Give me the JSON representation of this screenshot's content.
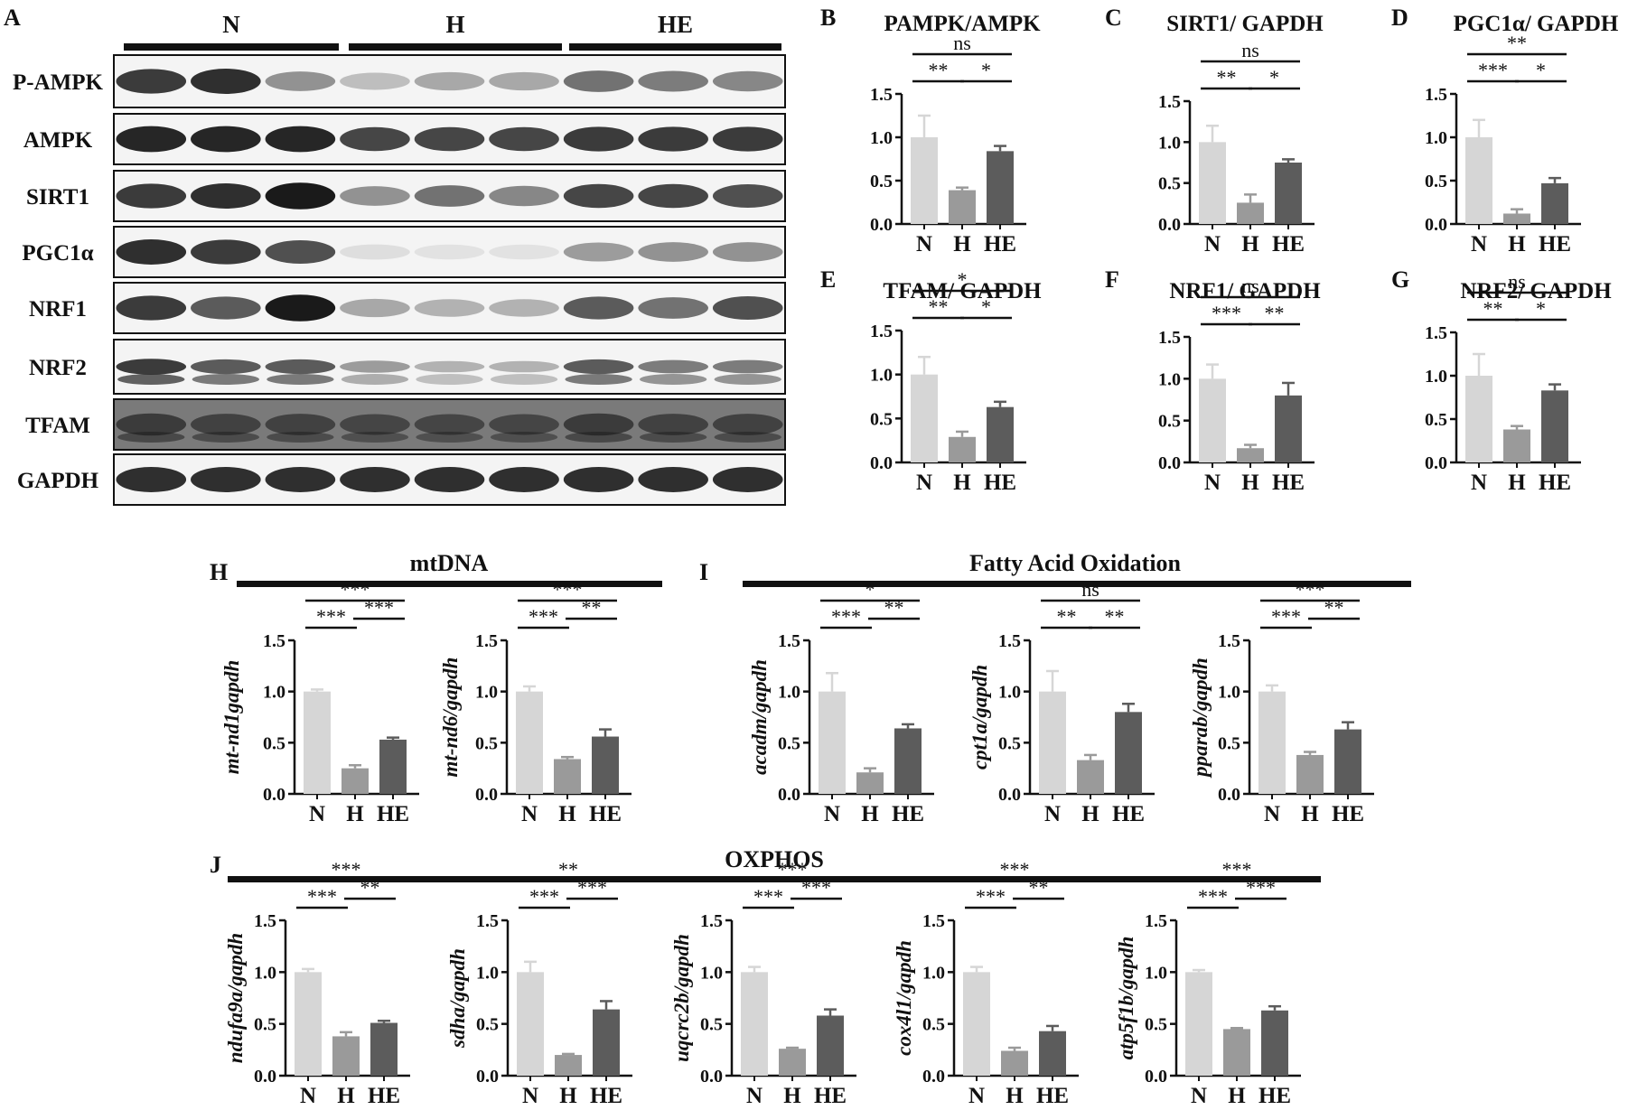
{
  "colors": {
    "N": "#d6d6d6",
    "H": "#9a9a9a",
    "HE": "#5c5c5c",
    "axis": "#111111",
    "blot": "#1a1a1a"
  },
  "blot": {
    "letter": "A",
    "groups": [
      "N",
      "H",
      "HE"
    ],
    "rows": [
      {
        "label": "P-AMPK",
        "intensities": [
          0.85,
          0.9,
          0.45,
          0.25,
          0.35,
          0.35,
          0.6,
          0.55,
          0.5
        ]
      },
      {
        "label": "AMPK",
        "intensities": [
          0.95,
          0.95,
          0.95,
          0.8,
          0.8,
          0.8,
          0.85,
          0.85,
          0.85
        ]
      },
      {
        "label": "SIRT1",
        "intensities": [
          0.85,
          0.9,
          1.0,
          0.45,
          0.6,
          0.5,
          0.8,
          0.8,
          0.75
        ]
      },
      {
        "label": "PGC1α",
        "intensities": [
          0.9,
          0.85,
          0.75,
          0.1,
          0.08,
          0.08,
          0.4,
          0.45,
          0.45
        ]
      },
      {
        "label": "NRF1",
        "intensities": [
          0.85,
          0.7,
          1.0,
          0.35,
          0.3,
          0.3,
          0.7,
          0.6,
          0.75
        ]
      },
      {
        "label": "NRF2",
        "intensities": [
          0.85,
          0.7,
          0.7,
          0.4,
          0.3,
          0.3,
          0.7,
          0.55,
          0.55
        ]
      },
      {
        "label": "TFAM",
        "intensities": [
          0.65,
          0.6,
          0.6,
          0.55,
          0.55,
          0.55,
          0.65,
          0.6,
          0.6
        ]
      },
      {
        "label": "GAPDH",
        "intensities": [
          0.9,
          0.9,
          0.9,
          0.9,
          0.9,
          0.9,
          0.9,
          0.9,
          0.9
        ]
      }
    ]
  },
  "group_headers": {
    "H": "mtDNA",
    "I": "Fatty Acid Oxidation",
    "J": "OXPHOS"
  },
  "chart_data": [
    {
      "letter": "B",
      "type": "bar",
      "title": "PAMPK/AMPK",
      "ylabel": "",
      "categories": [
        "N",
        "H",
        "HE"
      ],
      "values": [
        1.0,
        0.39,
        0.84
      ],
      "errors": [
        0.25,
        0.03,
        0.06
      ],
      "ylim": [
        0,
        1.5
      ],
      "yticks": [
        "0.0",
        "0.5",
        "1.0",
        "1.5"
      ],
      "annotations": [
        {
          "from": 0,
          "to": 2,
          "label": "ns"
        },
        {
          "from": 0,
          "to": 1,
          "label": "**"
        },
        {
          "from": 1,
          "to": 2,
          "label": "*"
        }
      ]
    },
    {
      "letter": "C",
      "type": "bar",
      "title": "SIRT1/ GAPDH",
      "ylabel": "",
      "categories": [
        "N",
        "H",
        "HE"
      ],
      "values": [
        1.0,
        0.26,
        0.75
      ],
      "errors": [
        0.2,
        0.1,
        0.04
      ],
      "ylim": [
        0,
        1.5
      ],
      "yticks": [
        "0.0",
        "0.5",
        "1.0",
        "1.5"
      ],
      "annotations": [
        {
          "from": 0,
          "to": 2,
          "label": "ns"
        },
        {
          "from": 0,
          "to": 1,
          "label": "**"
        },
        {
          "from": 1,
          "to": 2,
          "label": "*"
        }
      ]
    },
    {
      "letter": "D",
      "type": "bar",
      "title": "PGC1α/ GAPDH",
      "ylabel": "",
      "categories": [
        "N",
        "H",
        "HE"
      ],
      "values": [
        1.0,
        0.12,
        0.47
      ],
      "errors": [
        0.2,
        0.05,
        0.06
      ],
      "ylim": [
        0,
        1.5
      ],
      "yticks": [
        "0.0",
        "0.5",
        "1.0",
        "1.5"
      ],
      "annotations": [
        {
          "from": 0,
          "to": 2,
          "label": "**"
        },
        {
          "from": 0,
          "to": 1,
          "label": "***"
        },
        {
          "from": 1,
          "to": 2,
          "label": "*"
        }
      ]
    },
    {
      "letter": "E",
      "type": "bar",
      "title": "TFAM/ GAPDH",
      "ylabel": "",
      "categories": [
        "N",
        "H",
        "HE"
      ],
      "values": [
        1.0,
        0.29,
        0.63
      ],
      "errors": [
        0.2,
        0.06,
        0.06
      ],
      "ylim": [
        0,
        1.5
      ],
      "yticks": [
        "0.0",
        "0.5",
        "1.0",
        "1.5"
      ],
      "annotations": [
        {
          "from": 0,
          "to": 2,
          "label": "*"
        },
        {
          "from": 0,
          "to": 1,
          "label": "**"
        },
        {
          "from": 1,
          "to": 2,
          "label": "*"
        }
      ]
    },
    {
      "letter": "F",
      "type": "bar",
      "title": "NRF1/ GAPDH",
      "ylabel": "",
      "categories": [
        "N",
        "H",
        "HE"
      ],
      "values": [
        1.0,
        0.17,
        0.8
      ],
      "errors": [
        0.17,
        0.04,
        0.15
      ],
      "ylim": [
        0,
        1.5
      ],
      "yticks": [
        "0.0",
        "0.5",
        "1.0",
        "1.5"
      ],
      "annotations": [
        {
          "from": 0,
          "to": 2,
          "label": "ns"
        },
        {
          "from": 0,
          "to": 1,
          "label": "***"
        },
        {
          "from": 1,
          "to": 2,
          "label": "**"
        }
      ]
    },
    {
      "letter": "G",
      "type": "bar",
      "title": "NRF2/ GAPDH",
      "ylabel": "",
      "categories": [
        "N",
        "H",
        "HE"
      ],
      "values": [
        1.0,
        0.38,
        0.83
      ],
      "errors": [
        0.25,
        0.04,
        0.07
      ],
      "ylim": [
        0,
        1.5
      ],
      "yticks": [
        "0.0",
        "0.5",
        "1.0",
        "1.5"
      ],
      "annotations": [
        {
          "from": 0,
          "to": 2,
          "label": "ns"
        },
        {
          "from": 0,
          "to": 1,
          "label": "**"
        },
        {
          "from": 1,
          "to": 2,
          "label": "*"
        }
      ]
    },
    {
      "letter": "H",
      "type": "bar",
      "title": "",
      "ylabel": "mt-nd1gapdh",
      "categories": [
        "N",
        "H",
        "HE"
      ],
      "values": [
        1.0,
        0.25,
        0.53
      ],
      "errors": [
        0.02,
        0.03,
        0.02
      ],
      "ylim": [
        0,
        1.5
      ],
      "yticks": [
        "0.0",
        "0.5",
        "1.0",
        "1.5"
      ],
      "annotations": [
        {
          "from": 0,
          "to": 2,
          "label": "***"
        },
        {
          "from": 1,
          "to": 2,
          "label": "***"
        },
        {
          "from": 0,
          "to": 1,
          "label": "***"
        }
      ]
    },
    {
      "letter": "",
      "type": "bar",
      "title": "",
      "ylabel": "mt-nd6/gapdh",
      "categories": [
        "N",
        "H",
        "HE"
      ],
      "values": [
        1.0,
        0.34,
        0.56
      ],
      "errors": [
        0.05,
        0.02,
        0.07
      ],
      "ylim": [
        0,
        1.5
      ],
      "yticks": [
        "0.0",
        "0.5",
        "1.0",
        "1.5"
      ],
      "annotations": [
        {
          "from": 0,
          "to": 2,
          "label": "***"
        },
        {
          "from": 1,
          "to": 2,
          "label": "**"
        },
        {
          "from": 0,
          "to": 1,
          "label": "***"
        }
      ]
    },
    {
      "letter": "I",
      "type": "bar",
      "title": "",
      "ylabel": "acadm/gapdh",
      "categories": [
        "N",
        "H",
        "HE"
      ],
      "values": [
        1.0,
        0.21,
        0.64
      ],
      "errors": [
        0.18,
        0.04,
        0.04
      ],
      "ylim": [
        0,
        1.5
      ],
      "yticks": [
        "0.0",
        "0.5",
        "1.0",
        "1.5"
      ],
      "annotations": [
        {
          "from": 0,
          "to": 2,
          "label": "*"
        },
        {
          "from": 1,
          "to": 2,
          "label": "**"
        },
        {
          "from": 0,
          "to": 1,
          "label": "***"
        }
      ]
    },
    {
      "letter": "",
      "type": "bar",
      "title": "",
      "ylabel": "cpt1a/gapdh",
      "categories": [
        "N",
        "H",
        "HE"
      ],
      "values": [
        1.0,
        0.33,
        0.8
      ],
      "errors": [
        0.2,
        0.05,
        0.08
      ],
      "ylim": [
        0,
        1.5
      ],
      "yticks": [
        "0.0",
        "0.5",
        "1.0",
        "1.5"
      ],
      "annotations": [
        {
          "from": 0,
          "to": 2,
          "label": "ns"
        },
        {
          "from": 0,
          "to": 1,
          "label": "**"
        },
        {
          "from": 1,
          "to": 2,
          "label": "**"
        }
      ]
    },
    {
      "letter": "",
      "type": "bar",
      "title": "",
      "ylabel": "pparab/gapdh",
      "categories": [
        "N",
        "H",
        "HE"
      ],
      "values": [
        1.0,
        0.38,
        0.63
      ],
      "errors": [
        0.06,
        0.03,
        0.07
      ],
      "ylim": [
        0,
        1.5
      ],
      "yticks": [
        "0.0",
        "0.5",
        "1.0",
        "1.5"
      ],
      "annotations": [
        {
          "from": 0,
          "to": 2,
          "label": "***"
        },
        {
          "from": 1,
          "to": 2,
          "label": "**"
        },
        {
          "from": 0,
          "to": 1,
          "label": "***"
        }
      ]
    },
    {
      "letter": "J",
      "type": "bar",
      "title": "",
      "ylabel": "ndufa9a/gapdh",
      "categories": [
        "N",
        "H",
        "HE"
      ],
      "values": [
        1.0,
        0.38,
        0.51
      ],
      "errors": [
        0.03,
        0.04,
        0.02
      ],
      "ylim": [
        0,
        1.5
      ],
      "yticks": [
        "0.0",
        "0.5",
        "1.0",
        "1.5"
      ],
      "annotations": [
        {
          "from": 0,
          "to": 2,
          "label": "***"
        },
        {
          "from": 1,
          "to": 2,
          "label": "**"
        },
        {
          "from": 0,
          "to": 1,
          "label": "***"
        }
      ]
    },
    {
      "letter": "",
      "type": "bar",
      "title": "",
      "ylabel": "sdha/gapdh",
      "categories": [
        "N",
        "H",
        "HE"
      ],
      "values": [
        1.0,
        0.2,
        0.64
      ],
      "errors": [
        0.1,
        0.01,
        0.08
      ],
      "ylim": [
        0,
        1.5
      ],
      "yticks": [
        "0.0",
        "0.5",
        "1.0",
        "1.5"
      ],
      "annotations": [
        {
          "from": 0,
          "to": 2,
          "label": "**"
        },
        {
          "from": 1,
          "to": 2,
          "label": "***"
        },
        {
          "from": 0,
          "to": 1,
          "label": "***"
        }
      ]
    },
    {
      "letter": "",
      "type": "bar",
      "title": "",
      "ylabel": "uqcrc2b/gapdh",
      "categories": [
        "N",
        "H",
        "HE"
      ],
      "values": [
        1.0,
        0.26,
        0.58
      ],
      "errors": [
        0.05,
        0.01,
        0.06
      ],
      "ylim": [
        0,
        1.5
      ],
      "yticks": [
        "0.0",
        "0.5",
        "1.0",
        "1.5"
      ],
      "annotations": [
        {
          "from": 0,
          "to": 2,
          "label": "***"
        },
        {
          "from": 1,
          "to": 2,
          "label": "***"
        },
        {
          "from": 0,
          "to": 1,
          "label": "***"
        }
      ]
    },
    {
      "letter": "",
      "type": "bar",
      "title": "",
      "ylabel": "cox4l1/gapdh",
      "categories": [
        "N",
        "H",
        "HE"
      ],
      "values": [
        1.0,
        0.24,
        0.43
      ],
      "errors": [
        0.05,
        0.03,
        0.05
      ],
      "ylim": [
        0,
        1.5
      ],
      "yticks": [
        "0.0",
        "0.5",
        "1.0",
        "1.5"
      ],
      "annotations": [
        {
          "from": 0,
          "to": 2,
          "label": "***"
        },
        {
          "from": 1,
          "to": 2,
          "label": "**"
        },
        {
          "from": 0,
          "to": 1,
          "label": "***"
        }
      ]
    },
    {
      "letter": "",
      "type": "bar",
      "title": "",
      "ylabel": "atp5f1b/gapdh",
      "categories": [
        "N",
        "H",
        "HE"
      ],
      "values": [
        1.0,
        0.45,
        0.63
      ],
      "errors": [
        0.02,
        0.01,
        0.04
      ],
      "ylim": [
        0,
        1.5
      ],
      "yticks": [
        "0.0",
        "0.5",
        "1.0",
        "1.5"
      ],
      "annotations": [
        {
          "from": 0,
          "to": 2,
          "label": "***"
        },
        {
          "from": 1,
          "to": 2,
          "label": "***"
        },
        {
          "from": 0,
          "to": 1,
          "label": "***"
        }
      ]
    }
  ]
}
